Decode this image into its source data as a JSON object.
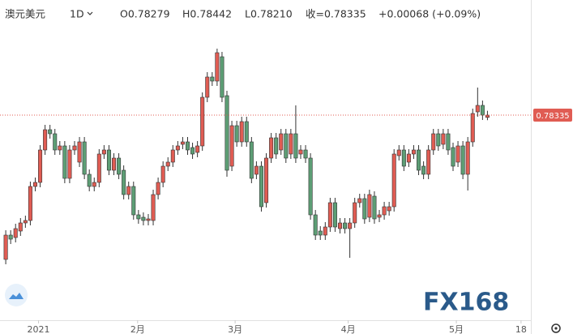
{
  "header": {
    "symbol": "澳元美元",
    "interval": "1D",
    "open": "O0.78279",
    "high": "H0.78442",
    "low": "L0.78210",
    "close": "收=0.78335",
    "change": "+0.00068 (+0.09%)"
  },
  "watermark": "FX168",
  "chart_data": {
    "type": "candlestick",
    "up_color": "#e05c53",
    "down_color": "#5d9e75",
    "ylim": [
      0.73275,
      0.81175
    ],
    "xlim": [
      -1.17,
      106.5
    ],
    "xticks": [
      {
        "value": 6.67,
        "label": "2021"
      },
      {
        "value": 26.83,
        "label": "2月"
      },
      {
        "value": 46.67,
        "label": "3月"
      },
      {
        "value": 69.67,
        "label": "4月"
      },
      {
        "value": 91.67,
        "label": "5月"
      },
      {
        "value": 104.83,
        "label": "18"
      }
    ],
    "open": [
      0.74775,
      0.75375,
      0.75315,
      0.75475,
      0.75675,
      0.75735,
      0.76575,
      0.76675,
      0.77475,
      0.77975,
      0.77875,
      0.77475,
      0.77575,
      0.76775,
      0.77475,
      0.77175,
      0.77675,
      0.76875,
      0.76575,
      0.76675,
      0.77375,
      0.77475,
      0.76975,
      0.77275,
      0.76975,
      0.76375,
      0.76575,
      0.75875,
      0.75815,
      0.75735,
      0.75735,
      0.76375,
      0.76675,
      0.77075,
      0.77175,
      0.77475,
      0.77615,
      0.77675,
      0.77535,
      0.77415,
      0.77575,
      0.78775,
      0.79275,
      0.79175,
      0.79775,
      0.78815,
      0.77075,
      0.78075,
      0.77675,
      0.78175,
      0.77675,
      0.76875,
      0.77075,
      0.76175,
      0.77275,
      0.77775,
      0.77475,
      0.77875,
      0.77375,
      0.77875,
      0.77375,
      0.77475,
      0.77275,
      0.75875,
      0.75475,
      0.75375,
      0.75575,
      0.76175,
      0.75535,
      0.75675,
      0.75535,
      0.75675,
      0.76175,
      0.76275,
      0.75815,
      0.76335,
      0.75815,
      0.75875,
      0.75975,
      0.76075,
      0.77335,
      0.77475,
      0.77175,
      0.77375,
      0.77475,
      0.77075,
      0.76875,
      0.77475,
      0.77875,
      0.77615,
      0.77875,
      0.77535,
      0.77175,
      0.77575,
      0.76875,
      0.77675,
      0.78415,
      0.78575,
      0.78279
    ],
    "high": [
      0.75495,
      0.75495,
      0.75655,
      0.75795,
      0.75855,
      0.76695,
      0.76795,
      0.77595,
      0.78095,
      0.78095,
      0.77995,
      0.77695,
      0.77695,
      0.77595,
      0.77695,
      0.77795,
      0.77795,
      0.76995,
      0.76795,
      0.77495,
      0.77595,
      0.77595,
      0.77395,
      0.77395,
      0.77095,
      0.76695,
      0.76695,
      0.75995,
      0.75935,
      0.75895,
      0.76495,
      0.76795,
      0.77195,
      0.77295,
      0.77595,
      0.77695,
      0.77795,
      0.77795,
      0.77655,
      0.77695,
      0.78895,
      0.79395,
      0.79395,
      0.79975,
      0.79895,
      0.78935,
      0.78195,
      0.78195,
      0.78295,
      0.78295,
      0.77795,
      0.77195,
      0.77195,
      0.77395,
      0.77895,
      0.77895,
      0.77995,
      0.77995,
      0.77995,
      0.78575,
      0.77595,
      0.77595,
      0.77395,
      0.75995,
      0.75595,
      0.75695,
      0.76295,
      0.76295,
      0.75795,
      0.75795,
      0.75795,
      0.76295,
      0.76395,
      0.76395,
      0.76495,
      0.76455,
      0.75995,
      0.76195,
      0.76195,
      0.77495,
      0.77595,
      0.77595,
      0.77495,
      0.77595,
      0.77595,
      0.77195,
      0.77595,
      0.77995,
      0.77995,
      0.77995,
      0.77995,
      0.77655,
      0.77695,
      0.77695,
      0.77795,
      0.78495,
      0.79015,
      0.78695,
      0.78442
    ],
    "low": [
      0.74655,
      0.75155,
      0.75195,
      0.75355,
      0.75555,
      0.75615,
      0.76455,
      0.76555,
      0.77355,
      0.77755,
      0.77355,
      0.77355,
      0.76655,
      0.76655,
      0.77355,
      0.77055,
      0.76755,
      0.76455,
      0.76455,
      0.76555,
      0.77255,
      0.76855,
      0.76855,
      0.76755,
      0.76255,
      0.76255,
      0.75755,
      0.75655,
      0.75615,
      0.75615,
      0.75615,
      0.76255,
      0.76555,
      0.76955,
      0.77055,
      0.77355,
      0.77495,
      0.77355,
      0.77255,
      0.77295,
      0.77455,
      0.78655,
      0.79055,
      0.79055,
      0.78655,
      0.76815,
      0.76955,
      0.77555,
      0.77555,
      0.77555,
      0.76655,
      0.76755,
      0.75955,
      0.76055,
      0.77155,
      0.77255,
      0.77355,
      0.77155,
      0.77255,
      0.77155,
      0.77255,
      0.77155,
      0.75755,
      0.75255,
      0.75255,
      0.75255,
      0.75455,
      0.75455,
      0.75415,
      0.75415,
      0.74815,
      0.75555,
      0.76055,
      0.75655,
      0.75695,
      0.75655,
      0.75695,
      0.75755,
      0.75855,
      0.75955,
      0.77215,
      0.76955,
      0.77055,
      0.77255,
      0.76855,
      0.76755,
      0.76755,
      0.77355,
      0.77455,
      0.77495,
      0.77355,
      0.76955,
      0.77055,
      0.76755,
      0.76475,
      0.77555,
      0.78295,
      0.78215,
      0.7821
    ],
    "close": [
      0.75375,
      0.75275,
      0.75535,
      0.75675,
      0.75735,
      0.76575,
      0.76675,
      0.77475,
      0.77975,
      0.77875,
      0.77475,
      0.77575,
      0.76775,
      0.77475,
      0.77575,
      0.77675,
      0.76875,
      0.76575,
      0.76675,
      0.77375,
      0.77475,
      0.76975,
      0.77275,
      0.76875,
      0.76375,
      0.76575,
      0.75875,
      0.75775,
      0.75735,
      0.75775,
      0.76375,
      0.76675,
      0.77075,
      0.77175,
      0.77475,
      0.77575,
      0.77675,
      0.77475,
      0.77375,
      0.77575,
      0.78775,
      0.79275,
      0.79175,
      0.79875,
      0.78775,
      0.76975,
      0.78075,
      0.77675,
      0.78175,
      0.77675,
      0.76775,
      0.77075,
      0.76075,
      0.77275,
      0.77775,
      0.77375,
      0.77875,
      0.77275,
      0.77875,
      0.77275,
      0.77475,
      0.77275,
      0.75875,
      0.75375,
      0.75375,
      0.75575,
      0.76175,
      0.75575,
      0.75675,
      0.75535,
      0.75675,
      0.76175,
      0.76275,
      0.75775,
      0.76375,
      0.75775,
      0.75875,
      0.76075,
      0.76075,
      0.77375,
      0.77475,
      0.77075,
      0.77375,
      0.77475,
      0.76975,
      0.76875,
      0.77475,
      0.77875,
      0.77575,
      0.77875,
      0.77475,
      0.77075,
      0.77575,
      0.76875,
      0.77675,
      0.78375,
      0.78575,
      0.78335,
      0.78335
    ]
  }
}
